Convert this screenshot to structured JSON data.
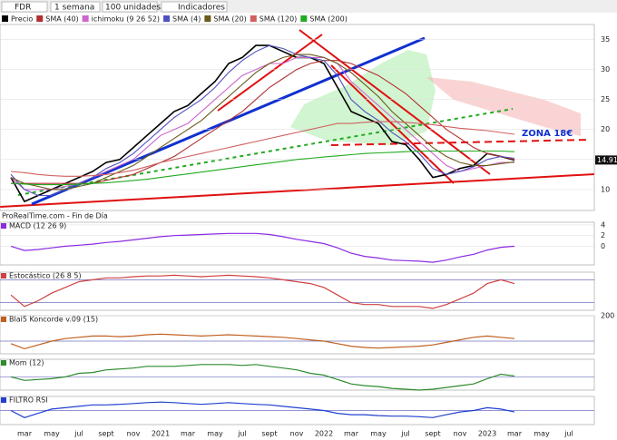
{
  "toolbar": {
    "symbol": "FDR",
    "period": "1 semana",
    "units": "100 unidades",
    "indicators": "Indicadores"
  },
  "chart_data": [
    {
      "type": "line",
      "categories": [
        null,
        "mar",
        null,
        "may",
        null,
        "jul",
        null,
        "sept",
        null,
        "nov",
        null,
        "2021",
        null,
        "mar",
        null,
        "may",
        null,
        "jul",
        null,
        "sept",
        null,
        "nov",
        null,
        "2022",
        null,
        "mar",
        null,
        "may",
        null,
        "jul",
        null,
        "sept",
        null,
        "nov",
        null,
        "2023",
        null,
        "mar",
        null,
        "may",
        null,
        "jul"
      ],
      "series": [
        {
          "name": "Precio",
          "color": "#000000",
          "values": [
            12,
            8,
            9,
            10,
            11,
            12,
            13,
            14.5,
            15,
            17,
            19,
            21,
            23,
            24,
            26,
            28,
            31,
            32,
            34,
            34,
            33,
            32,
            32,
            31,
            27,
            23,
            22,
            21,
            18,
            17.5,
            15,
            12,
            12.5,
            13.5,
            14,
            16,
            15.5,
            14.9,
            null,
            null,
            null,
            null
          ]
        },
        {
          "name": "SMA (40)",
          "color": "#b03030",
          "values": [
            11,
            11,
            11,
            11,
            11,
            11,
            11,
            11.5,
            12,
            12.5,
            13.5,
            14.5,
            15.5,
            17,
            18.5,
            20,
            21.5,
            23,
            25,
            27,
            28.5,
            30,
            31,
            31.5,
            31.5,
            31,
            30,
            29,
            27.5,
            26,
            24,
            22,
            20,
            18.5,
            17,
            16,
            15.5,
            15,
            null,
            null,
            null,
            null
          ]
        },
        {
          "name": "ichimoku (9 26 52)",
          "color": "#cc66cc",
          "values": [
            12,
            10,
            10,
            10,
            10.5,
            11,
            12,
            13,
            14,
            15,
            17,
            19,
            20,
            21,
            23,
            25,
            27,
            29,
            30,
            31,
            31,
            32,
            32,
            32,
            31,
            28,
            26,
            24,
            22,
            20,
            18,
            16,
            14,
            13,
            13.5,
            14,
            14.5,
            14.5,
            null,
            null,
            null,
            null
          ]
        },
        {
          "name": "SMA (4)",
          "color": "#5050c0",
          "values": [
            12.5,
            10,
            9,
            9,
            10,
            11,
            12,
            13.5,
            14.5,
            16,
            18,
            20,
            22,
            23.5,
            25,
            27,
            29.5,
            31.5,
            33,
            34,
            33.5,
            32.5,
            32,
            31.5,
            29,
            25,
            23,
            21.5,
            19.5,
            18,
            16,
            13.5,
            12.5,
            13,
            13.8,
            15,
            15.5,
            15.2,
            null,
            null,
            null,
            null
          ]
        },
        {
          "name": "SMA (20)",
          "color": "#6b5a1a",
          "values": [
            12,
            11,
            10.5,
            10,
            10,
            10.5,
            11,
            12,
            13,
            14,
            15.5,
            17,
            18.5,
            20,
            21.5,
            23.5,
            25.5,
            27.5,
            29.5,
            31,
            32,
            32.5,
            32.5,
            32,
            31,
            29.5,
            27.5,
            25.5,
            23,
            21,
            19,
            17,
            15.5,
            14.5,
            14,
            14,
            14.3,
            14.6,
            null,
            null,
            null,
            null
          ]
        },
        {
          "name": "SMA (120)",
          "color": "#d06060",
          "values": [
            13,
            12.8,
            12.5,
            12.3,
            12.2,
            12.2,
            12.3,
            12.5,
            12.8,
            13.2,
            13.8,
            14.5,
            15,
            15.5,
            16,
            16.5,
            17,
            17.5,
            18,
            18.5,
            19,
            19.5,
            20,
            20.5,
            21,
            21,
            21.2,
            21.3,
            21.3,
            21.2,
            21,
            20.8,
            20.5,
            20.2,
            20,
            19.8,
            19.5,
            19.2,
            null,
            null,
            null,
            null
          ]
        },
        {
          "name": "SMA (200)",
          "color": "#22aa22",
          "values": [
            11,
            10.9,
            10.8,
            10.8,
            10.8,
            10.9,
            11,
            11.1,
            11.3,
            11.5,
            11.7,
            12,
            12.3,
            12.6,
            12.9,
            13.2,
            13.5,
            13.8,
            14.1,
            14.4,
            14.7,
            15,
            15.2,
            15.4,
            15.6,
            15.8,
            16,
            16.1,
            16.2,
            16.3,
            16.4,
            16.4,
            16.4,
            16.4,
            16.4,
            16.4,
            16.4,
            16.3,
            null,
            null,
            null,
            null
          ]
        }
      ],
      "ylim": [
        6.5,
        37.5
      ],
      "yticks": [
        10,
        15,
        20,
        25,
        30,
        35
      ],
      "annotation": "ZONA 18€",
      "last_price": 14.91,
      "source": "ProRealTime.com - Fin de Día"
    },
    {
      "type": "line",
      "title": "MACD (12 26 9)",
      "color": "#8a2be2",
      "ylim": [
        -3.5,
        4.5
      ],
      "yticks": [
        4,
        2,
        0
      ],
      "values": [
        0,
        -0.8,
        -0.6,
        -0.3,
        0,
        0.2,
        0.4,
        0.7,
        0.9,
        1.2,
        1.5,
        1.8,
        2,
        2.1,
        2.2,
        2.3,
        2.4,
        2.4,
        2.4,
        2.2,
        1.8,
        1.3,
        0.9,
        0.5,
        -0.3,
        -1.3,
        -1.9,
        -2.2,
        -2.6,
        -2.7,
        -2.8,
        -3,
        -2.6,
        -2,
        -1.5,
        -0.7,
        -0.2,
        0,
        null,
        null,
        null,
        null
      ]
    },
    {
      "type": "line",
      "title": "Estocástico (26 8 5)",
      "color": "#d04040",
      "ylim": [
        0,
        100
      ],
      "levels": [
        20,
        80
      ],
      "values": [
        40,
        10,
        25,
        45,
        60,
        75,
        80,
        85,
        85,
        88,
        90,
        90,
        92,
        90,
        88,
        90,
        92,
        90,
        88,
        85,
        80,
        75,
        70,
        60,
        40,
        20,
        15,
        15,
        10,
        10,
        10,
        5,
        15,
        30,
        45,
        70,
        80,
        70,
        null,
        null,
        null,
        null
      ]
    },
    {
      "type": "line",
      "title": "Blai5 Koncorde v.09 (15)",
      "color": "#c06020",
      "ylim": [
        -100,
        200
      ],
      "yticks": [
        200
      ],
      "levels": [
        0
      ],
      "values": [
        -20,
        -60,
        -30,
        0,
        20,
        30,
        40,
        40,
        35,
        40,
        50,
        55,
        50,
        45,
        40,
        45,
        50,
        45,
        40,
        35,
        30,
        20,
        10,
        0,
        -20,
        -40,
        -50,
        -55,
        -50,
        -45,
        -40,
        -30,
        -10,
        10,
        30,
        40,
        30,
        20,
        null,
        null,
        null,
        null
      ]
    },
    {
      "type": "line",
      "title": "Mom (12)",
      "color": "#2e8b2e",
      "ylim": [
        -15,
        20
      ],
      "levels": [
        0
      ],
      "values": [
        0,
        -4,
        -3,
        -2,
        0,
        4,
        5,
        8,
        9,
        10,
        12,
        12,
        12,
        13,
        14,
        14,
        14,
        13,
        14,
        12,
        10,
        8,
        4,
        2,
        -3,
        -8,
        -10,
        -11,
        -13,
        -14,
        -15,
        -14,
        -12,
        -10,
        -8,
        -2,
        3,
        1,
        null,
        null,
        null,
        null
      ]
    },
    {
      "type": "line",
      "title": "FILTRO RSI",
      "color": "#2040d0",
      "ylim": [
        0,
        100
      ],
      "levels": [
        50
      ],
      "values": [
        50,
        25,
        40,
        55,
        60,
        65,
        70,
        70,
        72,
        75,
        78,
        80,
        78,
        75,
        72,
        75,
        78,
        75,
        72,
        70,
        65,
        60,
        55,
        50,
        40,
        35,
        35,
        32,
        30,
        30,
        28,
        25,
        35,
        45,
        50,
        60,
        55,
        45,
        null,
        null,
        null,
        null
      ]
    }
  ]
}
